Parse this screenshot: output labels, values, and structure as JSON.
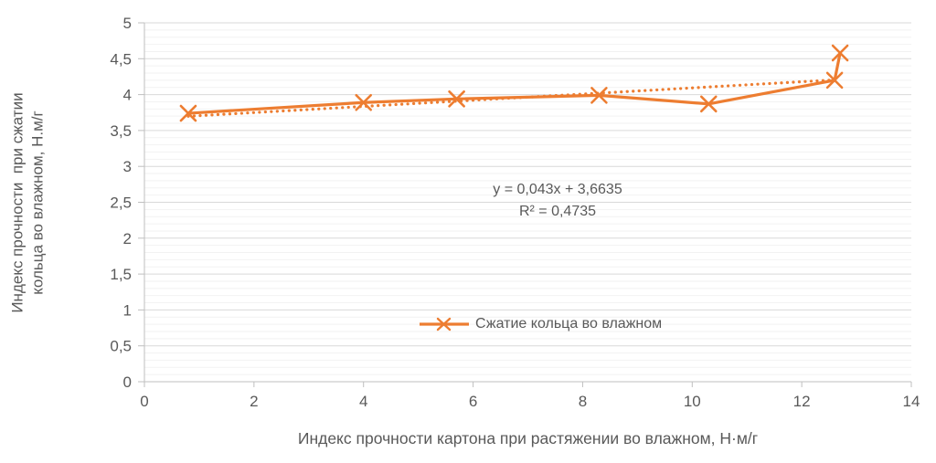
{
  "chart_data": {
    "type": "line",
    "title": "",
    "xlabel": "Индекс прочности картона при растяжении во влажном, Н·м/г",
    "ylabel_line1": "Индекс прочности  при сжатии",
    "ylabel_line2": "кольца во влажном, Н.м/г",
    "xlim": [
      0,
      14
    ],
    "ylim": [
      0,
      5
    ],
    "x_major_step": 2,
    "y_major_step": 0.5,
    "y_minor_step": 0.1,
    "x_tick_labels": [
      "0",
      "2",
      "4",
      "6",
      "8",
      "10",
      "12",
      "14"
    ],
    "y_tick_labels": [
      "0",
      "0,5",
      "1",
      "1,5",
      "2",
      "2,5",
      "3",
      "3,5",
      "4",
      "4,5",
      "5"
    ],
    "grid": {
      "major_color": "#D9D9D9",
      "minor_color": "#F2F2F2",
      "axis_color": "#BFBFBF",
      "minor_on": true
    },
    "text_color": "#595959",
    "series": [
      {
        "name": "Сжатие кольца во влажном",
        "color": "#ED7D31",
        "marker": "x",
        "points": [
          [
            0.8,
            3.74
          ],
          [
            4.0,
            3.89
          ],
          [
            5.7,
            3.94
          ],
          [
            8.3,
            3.99
          ],
          [
            10.3,
            3.87
          ],
          [
            12.6,
            4.2
          ],
          [
            12.7,
            4.58
          ]
        ]
      }
    ],
    "trendline": {
      "slope": 0.043,
      "intercept": 3.6635,
      "x_start": 0.8,
      "x_end": 12.7,
      "style": "dotted",
      "color": "#ED7D31",
      "equation": "y = 0,043x + 3,6635",
      "r_squared": "R² = 0,4735"
    },
    "legend": {
      "label": "Сжатие кольца во влажном",
      "position": "inside-bottom-center"
    }
  }
}
